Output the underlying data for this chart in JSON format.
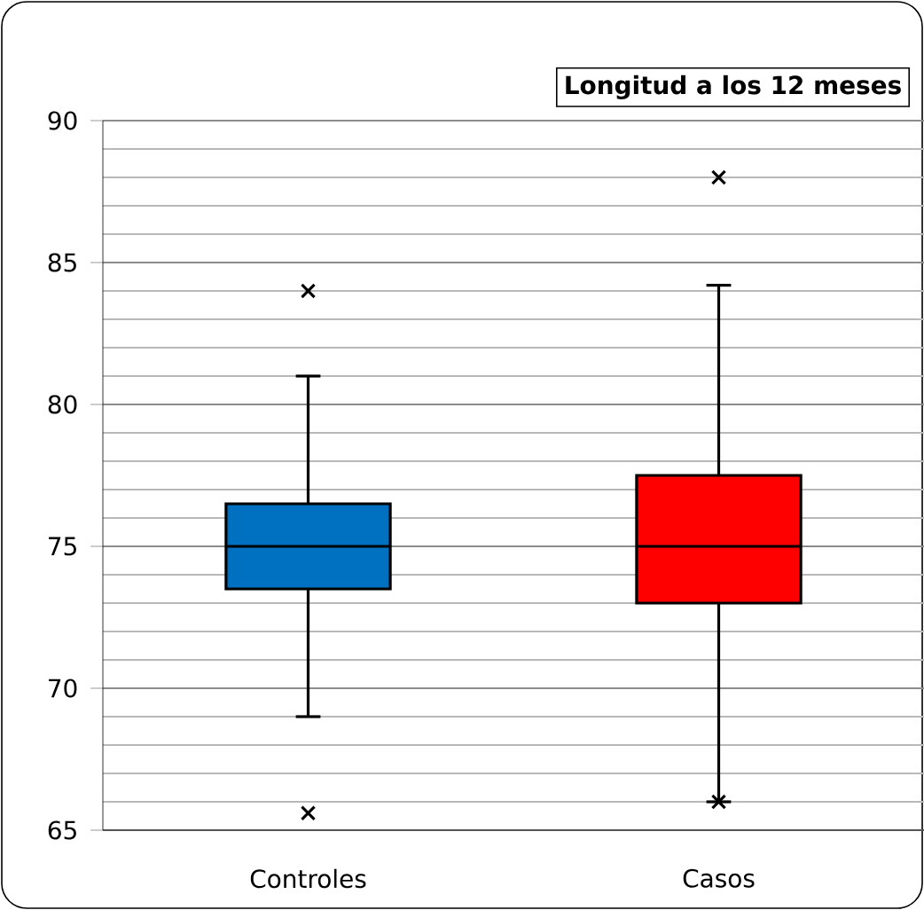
{
  "chart_data": {
    "type": "box",
    "title": "Longitud a los 12 meses",
    "categories": [
      "Controles",
      "Casos"
    ],
    "boxes": [
      {
        "low": 69,
        "q1": 73.5,
        "median": 75,
        "q3": 76.5,
        "high": 81,
        "outliers": [
          84,
          65.6
        ]
      },
      {
        "low": 66,
        "q1": 73,
        "median": 75,
        "q3": 77.5,
        "high": 84.2,
        "outliers": [
          88,
          66
        ]
      }
    ],
    "colors": [
      "#0070c0",
      "#ff0000"
    ],
    "ylim": [
      65,
      90
    ],
    "yticks": [
      65,
      70,
      75,
      80,
      85,
      90
    ],
    "grid": true,
    "marker": "cross"
  }
}
